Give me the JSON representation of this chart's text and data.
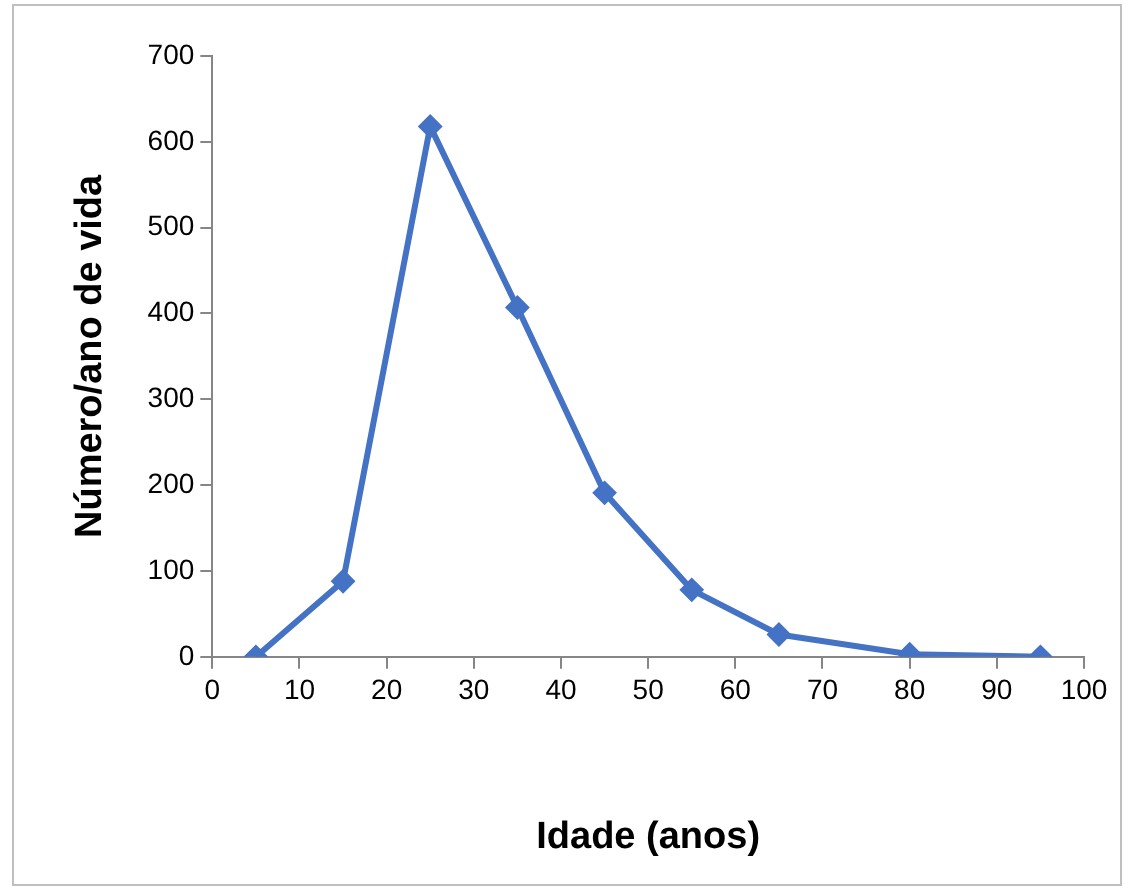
{
  "chart_data": {
    "type": "line",
    "xlabel": "Idade (anos)",
    "ylabel": "Número/ano de vida",
    "x": [
      5,
      15,
      25,
      35,
      45,
      55,
      65,
      80,
      95
    ],
    "series": [
      {
        "color": "#4472c4",
        "values": [
          0,
          88,
          618,
          407,
          191,
          78,
          26,
          3,
          0
        ]
      }
    ],
    "xlim": [
      0,
      100
    ],
    "xticks": [
      0,
      10,
      20,
      30,
      40,
      50,
      60,
      70,
      80,
      90,
      100
    ],
    "ylim": [
      0,
      700
    ],
    "yticks": [
      0,
      100,
      200,
      300,
      400,
      500,
      600,
      700
    ],
    "grid": false,
    "legend": false,
    "marker": "diamond",
    "line_style": "solid"
  }
}
